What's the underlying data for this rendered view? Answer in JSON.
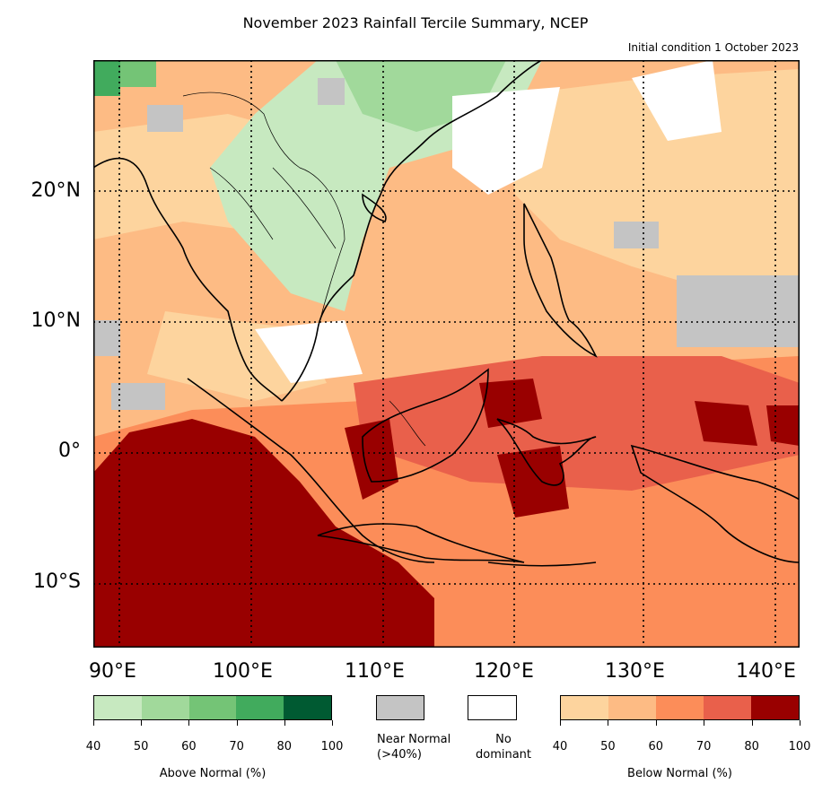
{
  "title": "November 2023 Rainfall Tercile Summary, NCEP",
  "subtitle": "Initial condition 1 October 2023",
  "map": {
    "lat_ticks": [
      "20°N",
      "10°N",
      "0°",
      "10°S"
    ],
    "lon_ticks": [
      "90°E",
      "100°E",
      "110°E",
      "120°E",
      "130°E",
      "140°E"
    ]
  },
  "legend": {
    "above": {
      "title": "Above Normal (%)",
      "ticks": [
        "40",
        "50",
        "60",
        "70",
        "80",
        "100"
      ],
      "colors": [
        "#c7e9c0",
        "#a1d99b",
        "#74c476",
        "#41ab5d",
        "#005a32"
      ]
    },
    "near_normal": {
      "label": "Near Normal\n(>40%)",
      "color": "#c4c4c4"
    },
    "no_dominant": {
      "label": "No\ndominant",
      "color": "#ffffff"
    },
    "below": {
      "title": "Below Normal (%)",
      "ticks": [
        "40",
        "50",
        "60",
        "70",
        "80",
        "100"
      ],
      "colors": [
        "#fdd49e",
        "#fdbb84",
        "#fc8d59",
        "#e9604b",
        "#990000"
      ]
    }
  }
}
